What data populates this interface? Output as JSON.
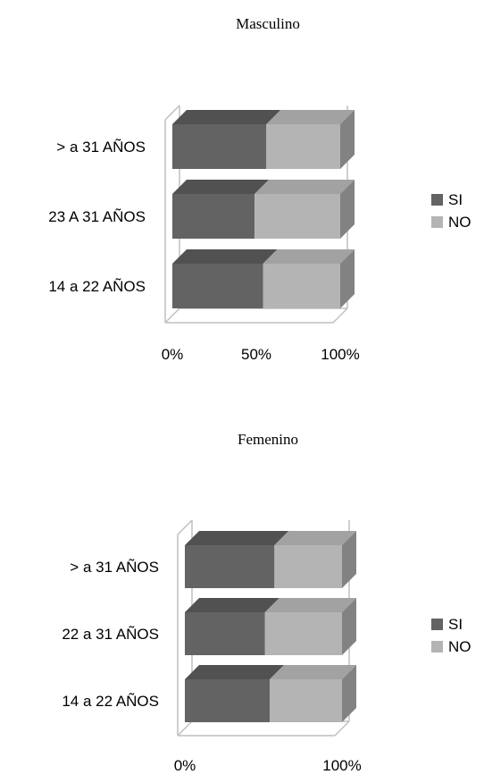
{
  "chart_data": [
    {
      "type": "bar",
      "orientation": "horizontal",
      "stacked": "percent",
      "style": "3d",
      "title": "Masculino",
      "categories": [
        "14 a 22 AÑOS",
        "23 A 31 AÑOS",
        "> a 31 AÑOS"
      ],
      "series": [
        {
          "name": "SI",
          "values": [
            54,
            49,
            56
          ],
          "color": "#636363"
        },
        {
          "name": "NO",
          "values": [
            46,
            51,
            44
          ],
          "color": "#b4b4b4"
        }
      ],
      "xticks": [
        "0%",
        "50%",
        "100%"
      ],
      "xlim": [
        0,
        100
      ],
      "legend_position": "right"
    },
    {
      "type": "bar",
      "orientation": "horizontal",
      "stacked": "percent",
      "style": "3d",
      "title": "Femenino",
      "categories": [
        "14 a 22 AÑOS",
        "22 a 31 AÑOS",
        "> a 31 AÑOS"
      ],
      "series": [
        {
          "name": "SI",
          "values": [
            54,
            51,
            57
          ],
          "color": "#636363"
        },
        {
          "name": "NO",
          "values": [
            46,
            49,
            43
          ],
          "color": "#b4b4b4"
        }
      ],
      "xticks": [
        "0%",
        "100%"
      ],
      "xlim": [
        0,
        100
      ],
      "legend_position": "right"
    }
  ]
}
